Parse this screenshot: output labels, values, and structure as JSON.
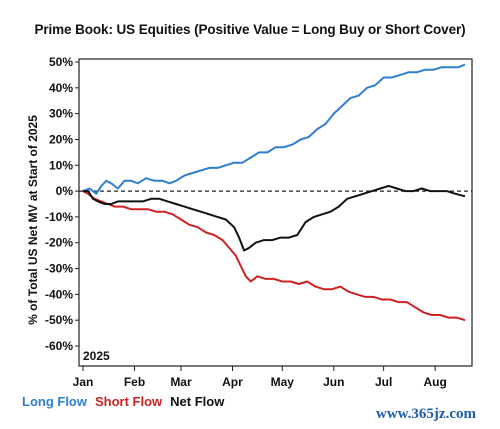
{
  "chart_data": {
    "type": "line",
    "title": "Prime Book: US Equities (Positive Value = Long Buy or Short Cover)",
    "ylabel": "% of Total US Net MV at Start of 2025",
    "year_label": "2025",
    "ylim": [
      -60,
      50
    ],
    "yticks": [
      {
        "value": 50,
        "label": "50%"
      },
      {
        "value": 40,
        "label": "40%"
      },
      {
        "value": 30,
        "label": "30%"
      },
      {
        "value": 20,
        "label": "20%"
      },
      {
        "value": 10,
        "label": "10%"
      },
      {
        "value": 0,
        "label": "0%"
      },
      {
        "value": -10,
        "label": "-10%"
      },
      {
        "value": -20,
        "label": "-20%"
      },
      {
        "value": -30,
        "label": "-30%"
      },
      {
        "value": -40,
        "label": "-40%"
      },
      {
        "value": -50,
        "label": "-50%"
      },
      {
        "value": -60,
        "label": "-60%"
      }
    ],
    "xticks": [
      {
        "value": "2025-01-01",
        "label": "Jan"
      },
      {
        "value": "2025-02-01",
        "label": "Feb"
      },
      {
        "value": "2025-03-01",
        "label": "Mar"
      },
      {
        "value": "2025-04-01",
        "label": "Apr"
      },
      {
        "value": "2025-05-01",
        "label": "May"
      },
      {
        "value": "2025-06-01",
        "label": "Jun"
      },
      {
        "value": "2025-07-01",
        "label": "Jul"
      },
      {
        "value": "2025-08-01",
        "label": "Aug"
      }
    ],
    "xlim": [
      "2025-01-01",
      "2025-08-20"
    ],
    "zero_line": "dashed",
    "grid": false,
    "legend_position": "bottom-left",
    "series": [
      {
        "name": "Long Flow",
        "color": "#2f7fd1",
        "points": [
          [
            "2025-01-01",
            0
          ],
          [
            "2025-01-05",
            1
          ],
          [
            "2025-01-09",
            -1
          ],
          [
            "2025-01-12",
            2
          ],
          [
            "2025-01-15",
            4
          ],
          [
            "2025-01-18",
            3
          ],
          [
            "2025-01-22",
            1
          ],
          [
            "2025-01-26",
            4
          ],
          [
            "2025-01-30",
            4
          ],
          [
            "2025-02-03",
            3
          ],
          [
            "2025-02-08",
            5
          ],
          [
            "2025-02-13",
            4
          ],
          [
            "2025-02-18",
            4
          ],
          [
            "2025-02-22",
            3
          ],
          [
            "2025-02-26",
            4
          ],
          [
            "2025-03-03",
            6
          ],
          [
            "2025-03-08",
            7
          ],
          [
            "2025-03-13",
            8
          ],
          [
            "2025-03-18",
            9
          ],
          [
            "2025-03-23",
            9
          ],
          [
            "2025-03-28",
            10
          ],
          [
            "2025-04-02",
            11
          ],
          [
            "2025-04-07",
            11
          ],
          [
            "2025-04-12",
            13
          ],
          [
            "2025-04-17",
            15
          ],
          [
            "2025-04-22",
            15
          ],
          [
            "2025-04-27",
            17
          ],
          [
            "2025-05-02",
            17
          ],
          [
            "2025-05-07",
            18
          ],
          [
            "2025-05-12",
            20
          ],
          [
            "2025-05-17",
            21
          ],
          [
            "2025-05-22",
            24
          ],
          [
            "2025-05-27",
            26
          ],
          [
            "2025-06-01",
            30
          ],
          [
            "2025-06-06",
            33
          ],
          [
            "2025-06-11",
            36
          ],
          [
            "2025-06-16",
            37
          ],
          [
            "2025-06-21",
            40
          ],
          [
            "2025-06-26",
            41
          ],
          [
            "2025-07-01",
            44
          ],
          [
            "2025-07-06",
            44
          ],
          [
            "2025-07-11",
            45
          ],
          [
            "2025-07-16",
            46
          ],
          [
            "2025-07-21",
            46
          ],
          [
            "2025-07-26",
            47
          ],
          [
            "2025-07-31",
            47
          ],
          [
            "2025-08-05",
            48
          ],
          [
            "2025-08-10",
            48
          ],
          [
            "2025-08-15",
            48
          ],
          [
            "2025-08-19",
            49
          ]
        ]
      },
      {
        "name": "Short Flow",
        "color": "#cc2222",
        "points": [
          [
            "2025-01-01",
            0
          ],
          [
            "2025-01-04",
            -1
          ],
          [
            "2025-01-08",
            -3
          ],
          [
            "2025-01-12",
            -4
          ],
          [
            "2025-01-16",
            -5
          ],
          [
            "2025-01-20",
            -6
          ],
          [
            "2025-01-25",
            -6
          ],
          [
            "2025-01-30",
            -7
          ],
          [
            "2025-02-04",
            -7
          ],
          [
            "2025-02-09",
            -7
          ],
          [
            "2025-02-14",
            -8
          ],
          [
            "2025-02-19",
            -8
          ],
          [
            "2025-02-24",
            -9
          ],
          [
            "2025-03-01",
            -11
          ],
          [
            "2025-03-06",
            -13
          ],
          [
            "2025-03-11",
            -14
          ],
          [
            "2025-03-16",
            -16
          ],
          [
            "2025-03-21",
            -17
          ],
          [
            "2025-03-26",
            -19
          ],
          [
            "2025-03-30",
            -22
          ],
          [
            "2025-04-03",
            -25
          ],
          [
            "2025-04-06",
            -29
          ],
          [
            "2025-04-09",
            -33
          ],
          [
            "2025-04-12",
            -35
          ],
          [
            "2025-04-16",
            -33
          ],
          [
            "2025-04-21",
            -34
          ],
          [
            "2025-04-26",
            -34
          ],
          [
            "2025-05-01",
            -35
          ],
          [
            "2025-05-06",
            -35
          ],
          [
            "2025-05-11",
            -36
          ],
          [
            "2025-05-16",
            -35
          ],
          [
            "2025-05-21",
            -37
          ],
          [
            "2025-05-26",
            -38
          ],
          [
            "2025-05-31",
            -38
          ],
          [
            "2025-06-05",
            -37
          ],
          [
            "2025-06-10",
            -39
          ],
          [
            "2025-06-15",
            -40
          ],
          [
            "2025-06-20",
            -41
          ],
          [
            "2025-06-25",
            -41
          ],
          [
            "2025-06-30",
            -42
          ],
          [
            "2025-07-05",
            -42
          ],
          [
            "2025-07-10",
            -43
          ],
          [
            "2025-07-15",
            -43
          ],
          [
            "2025-07-20",
            -45
          ],
          [
            "2025-07-25",
            -47
          ],
          [
            "2025-07-30",
            -48
          ],
          [
            "2025-08-04",
            -48
          ],
          [
            "2025-08-09",
            -49
          ],
          [
            "2025-08-14",
            -49
          ],
          [
            "2025-08-19",
            -50
          ]
        ]
      },
      {
        "name": "Net Flow",
        "color": "#111111",
        "points": [
          [
            "2025-01-01",
            0
          ],
          [
            "2025-01-04",
            0
          ],
          [
            "2025-01-07",
            -3
          ],
          [
            "2025-01-10",
            -4
          ],
          [
            "2025-01-14",
            -5
          ],
          [
            "2025-01-18",
            -5
          ],
          [
            "2025-01-22",
            -4
          ],
          [
            "2025-01-27",
            -4
          ],
          [
            "2025-02-01",
            -4
          ],
          [
            "2025-02-06",
            -4
          ],
          [
            "2025-02-11",
            -3
          ],
          [
            "2025-02-16",
            -3
          ],
          [
            "2025-02-21",
            -4
          ],
          [
            "2025-02-26",
            -5
          ],
          [
            "2025-03-03",
            -6
          ],
          [
            "2025-03-08",
            -7
          ],
          [
            "2025-03-13",
            -8
          ],
          [
            "2025-03-18",
            -9
          ],
          [
            "2025-03-23",
            -10
          ],
          [
            "2025-03-28",
            -11
          ],
          [
            "2025-04-02",
            -14
          ],
          [
            "2025-04-05",
            -18
          ],
          [
            "2025-04-08",
            -23
          ],
          [
            "2025-04-11",
            -22
          ],
          [
            "2025-04-15",
            -20
          ],
          [
            "2025-04-20",
            -19
          ],
          [
            "2025-04-25",
            -19
          ],
          [
            "2025-04-30",
            -18
          ],
          [
            "2025-05-05",
            -18
          ],
          [
            "2025-05-10",
            -17
          ],
          [
            "2025-05-15",
            -12
          ],
          [
            "2025-05-20",
            -10
          ],
          [
            "2025-05-25",
            -9
          ],
          [
            "2025-05-30",
            -8
          ],
          [
            "2025-06-04",
            -6
          ],
          [
            "2025-06-09",
            -3
          ],
          [
            "2025-06-14",
            -2
          ],
          [
            "2025-06-19",
            -1
          ],
          [
            "2025-06-24",
            0
          ],
          [
            "2025-06-29",
            1
          ],
          [
            "2025-07-04",
            2
          ],
          [
            "2025-07-09",
            1
          ],
          [
            "2025-07-14",
            0
          ],
          [
            "2025-07-19",
            0
          ],
          [
            "2025-07-24",
            1
          ],
          [
            "2025-07-29",
            0
          ],
          [
            "2025-08-03",
            0
          ],
          [
            "2025-08-08",
            0
          ],
          [
            "2025-08-13",
            -1
          ],
          [
            "2025-08-19",
            -2
          ]
        ]
      }
    ]
  },
  "watermark": "www.365jz.com"
}
